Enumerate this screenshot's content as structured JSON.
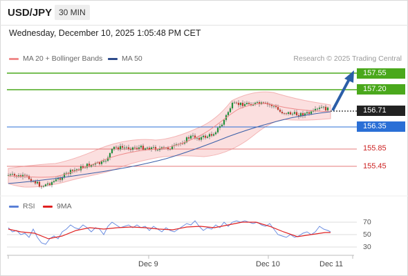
{
  "header": {
    "pair": "USD/JPY",
    "timeframe": "30 MIN"
  },
  "datetime": "Wednesday, December 10, 2025 1:05:48 PM CET",
  "legend": [
    {
      "label": "MA 20 + Bollinger Bands",
      "color": "#f08a8a"
    },
    {
      "label": "MA 50",
      "color": "#2d4a8a"
    }
  ],
  "credit": "Research © 2025 Trading Central",
  "levels": [
    {
      "value": "157.55",
      "kind": "resistance",
      "color": "#4aa81c"
    },
    {
      "value": "157.20",
      "kind": "resistance",
      "color": "#4aa81c"
    },
    {
      "value": "156.71",
      "kind": "current",
      "color": "#222222"
    },
    {
      "value": "156.35",
      "kind": "pivot",
      "color": "#2a6fd6"
    },
    {
      "value": "155.85",
      "kind": "support",
      "color": "#cc2222"
    },
    {
      "value": "155.45",
      "kind": "support",
      "color": "#cc2222"
    }
  ],
  "rsi_legend": [
    {
      "label": "RSI",
      "color": "#5a7fd6"
    },
    {
      "label": "9MA",
      "color": "#e02020"
    }
  ],
  "rsi_ticks": [
    "70",
    "50",
    "30"
  ],
  "x_labels": [
    "Dec 9",
    "Dec 10",
    "Dec 11"
  ]
}
